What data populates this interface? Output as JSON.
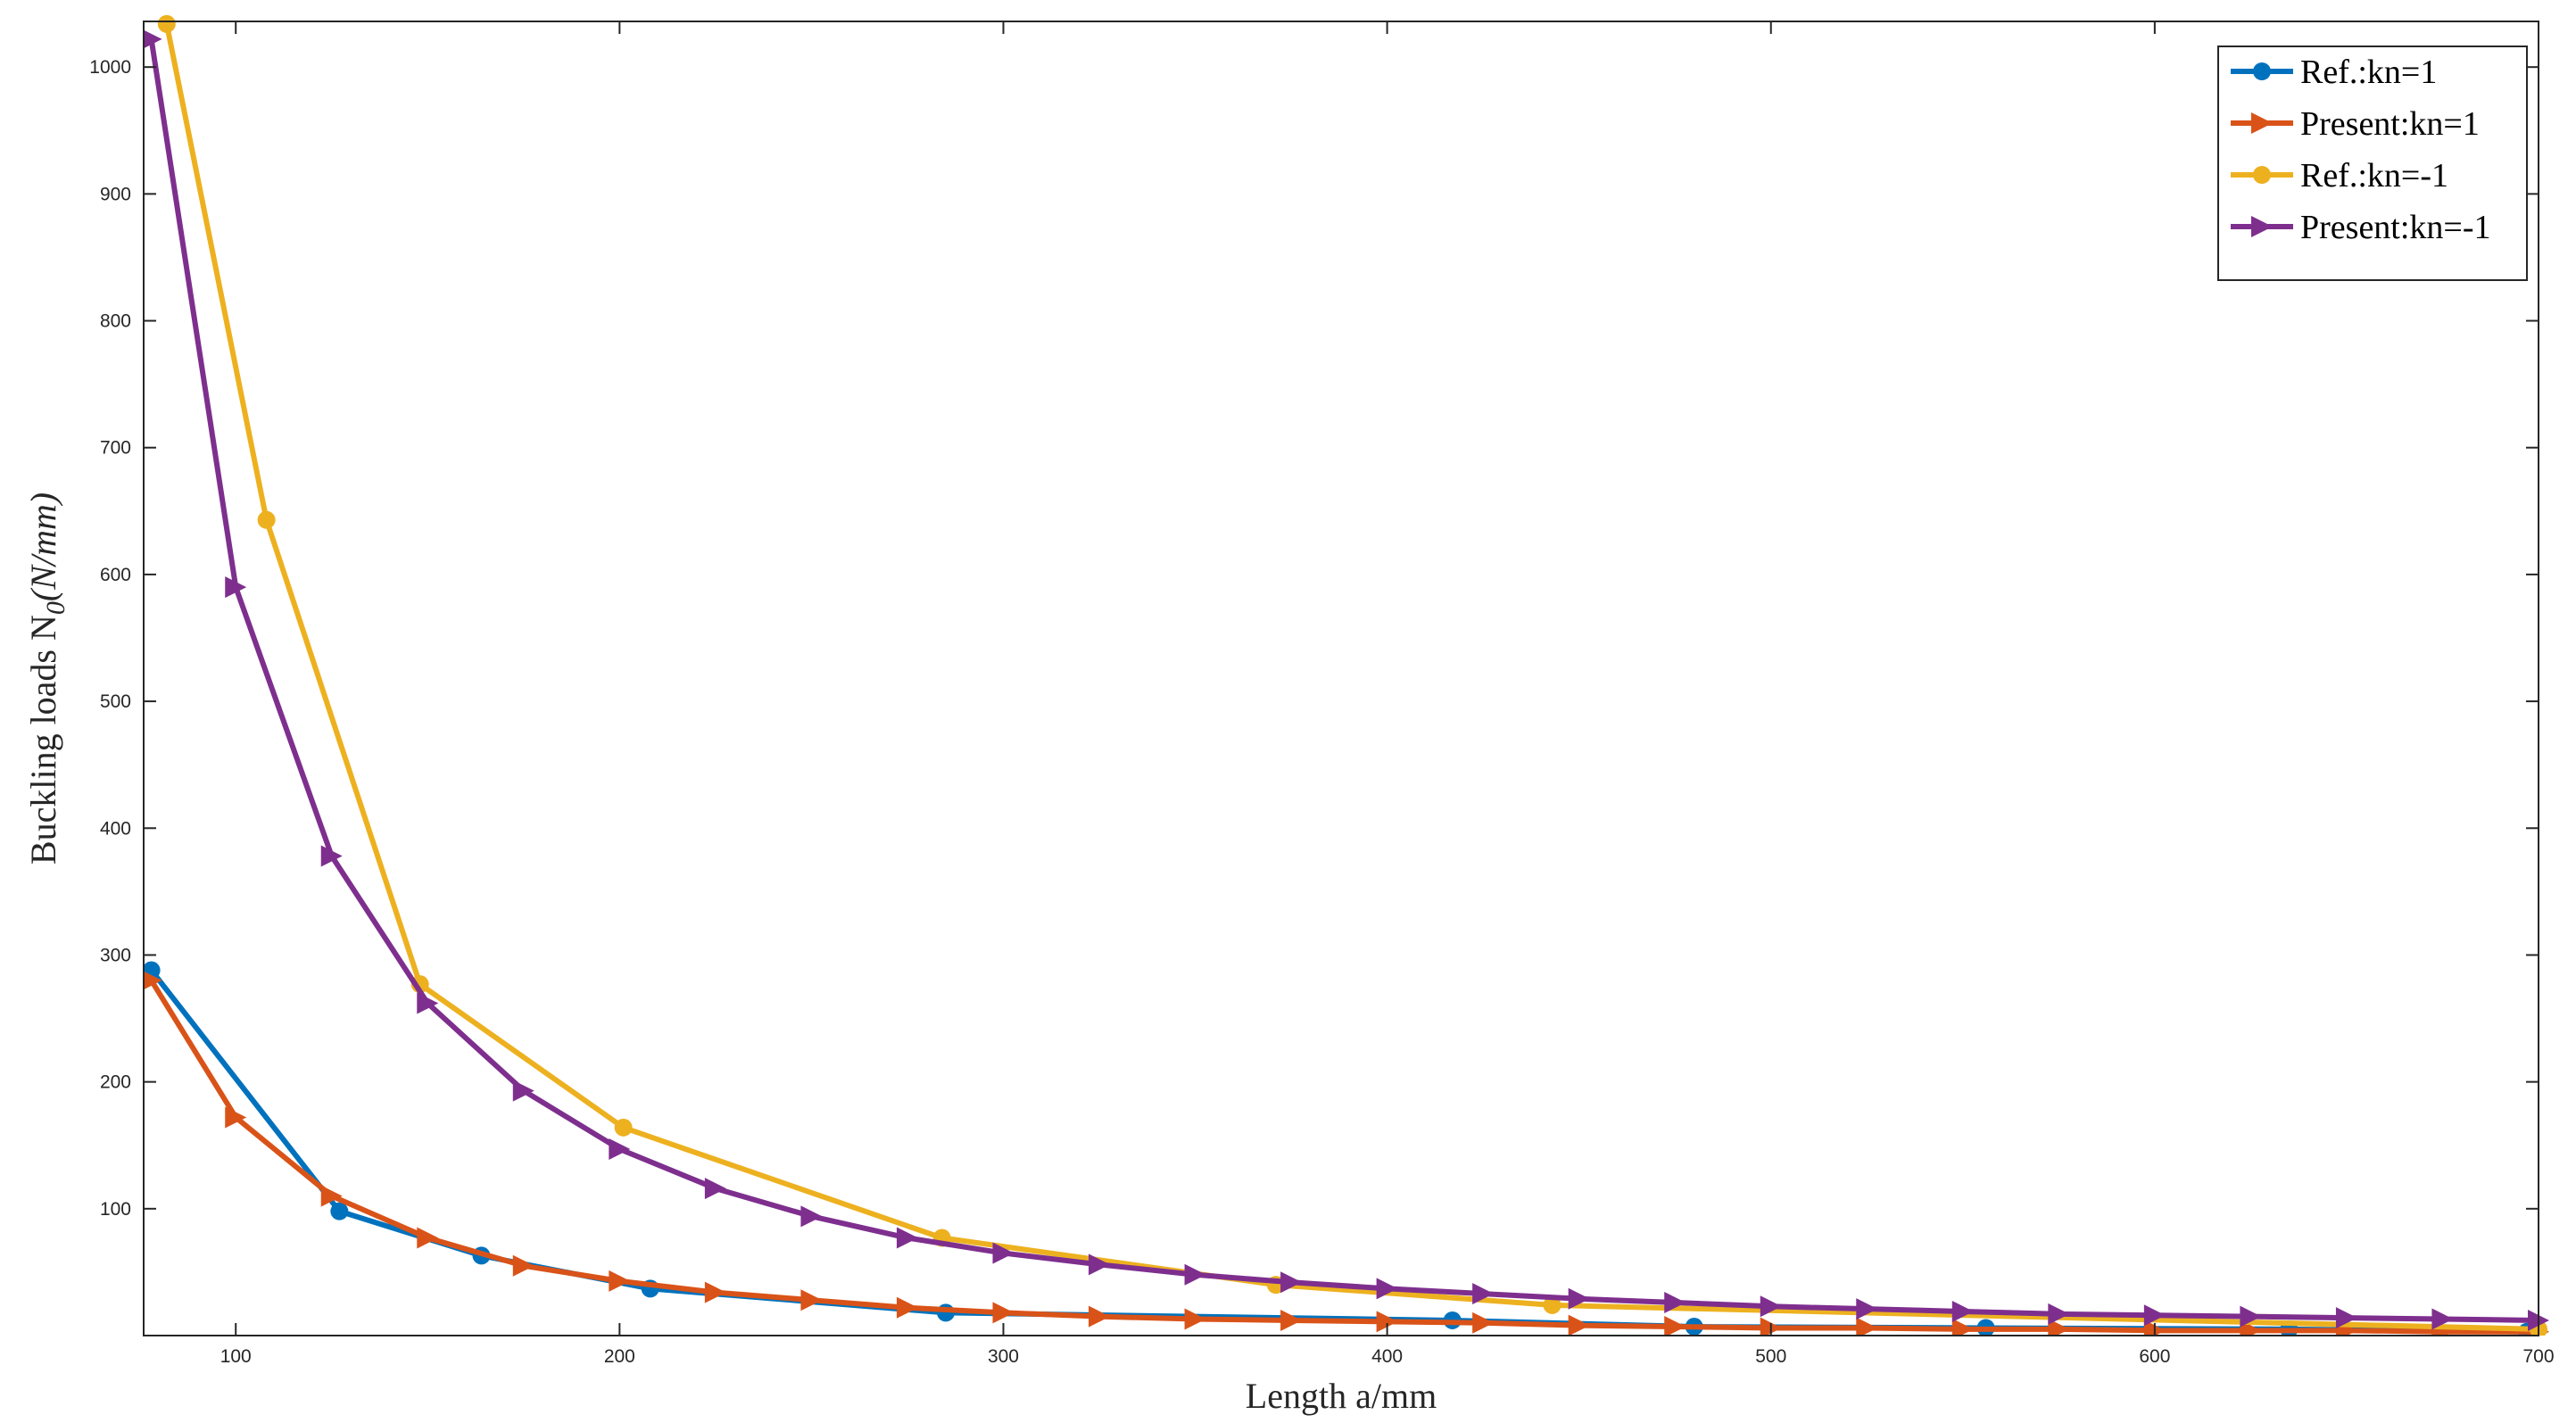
{
  "chart_data": {
    "type": "line",
    "xlabel": "Length a/mm",
    "ylabel_main": "Buckling loads N",
    "ylabel_sub": "0",
    "ylabel_unit": "(N/mm)",
    "xlim": [
      76,
      700
    ],
    "ylim": [
      0,
      1036
    ],
    "xticks": [
      100,
      200,
      300,
      400,
      500,
      600,
      700
    ],
    "yticks": [
      100,
      200,
      300,
      400,
      500,
      600,
      700,
      800,
      900,
      1000
    ],
    "grid": false,
    "legend_position": "top-right",
    "series": [
      {
        "name": "Ref.:kn=1",
        "color": "#0072BD",
        "marker": "circle",
        "x": [
          78,
          127,
          164,
          208,
          285,
          417,
          480,
          556,
          635,
          697
        ],
        "y": [
          288,
          98,
          63,
          37,
          18,
          12,
          7,
          6,
          5,
          3
        ]
      },
      {
        "name": "Present:kn=1",
        "color": "#D95319",
        "marker": "triangle-right",
        "x": [
          78,
          100,
          125,
          150,
          175,
          200,
          225,
          250,
          275,
          300,
          325,
          350,
          375,
          400,
          425,
          450,
          475,
          500,
          525,
          550,
          575,
          600,
          625,
          650,
          675,
          700
        ],
        "y": [
          280,
          172,
          110,
          77,
          55,
          43,
          34,
          28,
          22,
          18,
          15,
          13,
          12,
          11,
          10,
          8,
          7,
          6,
          6,
          5,
          5,
          4,
          4,
          4,
          3,
          3
        ]
      },
      {
        "name": "Ref.:kn=-1",
        "color": "#EDB120",
        "marker": "circle",
        "x": [
          82,
          108,
          148,
          201,
          284,
          371,
          443,
          700
        ],
        "y": [
          1034,
          643,
          277,
          164,
          77,
          40,
          24,
          5
        ]
      },
      {
        "name": "Present:kn=-1",
        "color": "#7E2F8E",
        "marker": "triangle-right",
        "x": [
          78,
          100,
          125,
          150,
          175,
          200,
          225,
          250,
          275,
          300,
          325,
          350,
          375,
          400,
          425,
          450,
          475,
          500,
          525,
          550,
          575,
          600,
          625,
          650,
          675,
          700
        ],
        "y": [
          1022,
          590,
          378,
          262,
          193,
          147,
          116,
          94,
          77,
          65,
          56,
          48,
          42,
          37,
          33,
          29,
          26,
          23,
          21,
          19,
          17,
          16,
          15,
          14,
          13,
          12
        ]
      }
    ]
  }
}
